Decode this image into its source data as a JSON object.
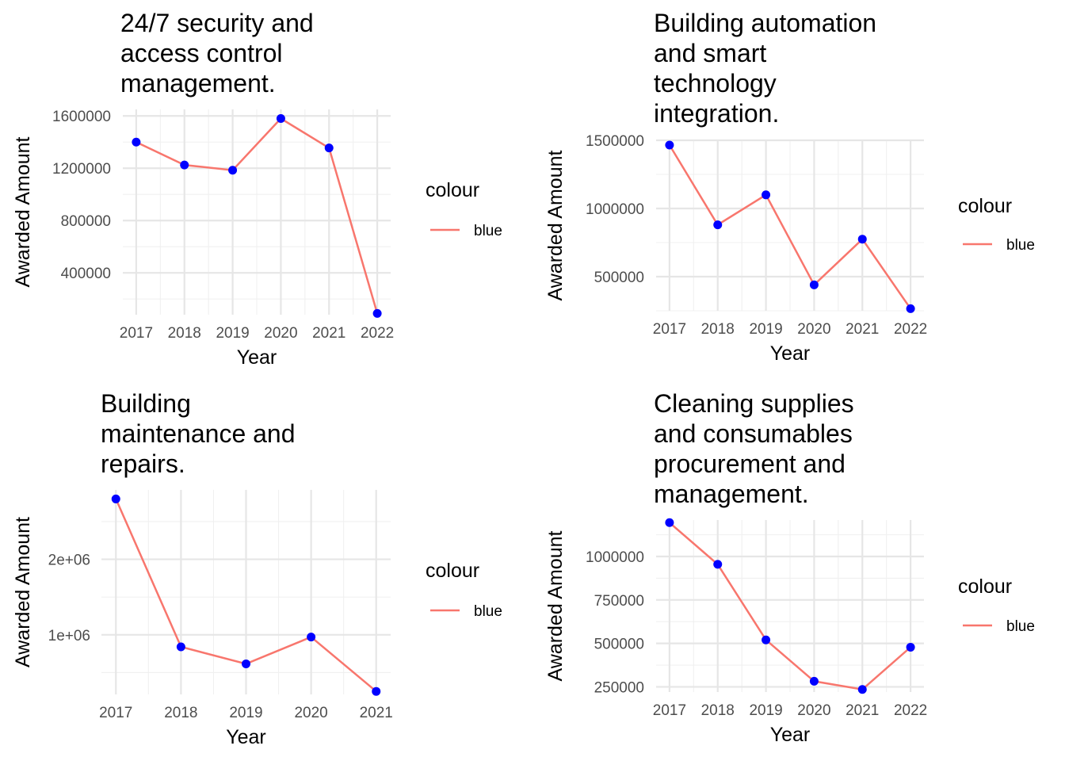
{
  "chart_data": [
    {
      "type": "line",
      "title": "24/7 security and access control management.",
      "title_lines": [
        "24/7 security and",
        "access control",
        "management."
      ],
      "xlabel": "Year",
      "ylabel": "Awarded Amount",
      "x": [
        2017,
        2018,
        2019,
        2020,
        2021,
        2022
      ],
      "x_tick_labels": [
        "2017",
        "2018",
        "2019",
        "2020",
        "2021",
        "2022"
      ],
      "y_ticks": [
        400000,
        800000,
        1200000,
        1600000
      ],
      "y_tick_labels": [
        "400000",
        "800000",
        "1200000",
        "1600000"
      ],
      "ylim": [
        80000,
        1650000
      ],
      "series": [
        {
          "name": "blue",
          "values": [
            1400000,
            1225000,
            1185000,
            1580000,
            1355000,
            90000
          ]
        }
      ],
      "legend": {
        "title": "colour",
        "position": "right",
        "entries": [
          "blue"
        ]
      },
      "grid": true
    },
    {
      "type": "line",
      "title": "Building automation and smart technology integration.",
      "title_lines": [
        "Building automation",
        "and smart",
        "technology",
        "integration."
      ],
      "xlabel": "Year",
      "ylabel": "Awarded Amount",
      "x": [
        2017,
        2018,
        2019,
        2020,
        2021,
        2022
      ],
      "x_tick_labels": [
        "2017",
        "2018",
        "2019",
        "2020",
        "2021",
        "2022"
      ],
      "y_ticks": [
        500000,
        1000000,
        1500000
      ],
      "y_tick_labels": [
        "500000",
        "1000000",
        "1500000"
      ],
      "ylim": [
        250000,
        1500000
      ],
      "series": [
        {
          "name": "blue",
          "values": [
            1465000,
            880000,
            1100000,
            440000,
            775000,
            265000
          ]
        }
      ],
      "legend": {
        "title": "colour",
        "position": "right",
        "entries": [
          "blue"
        ]
      },
      "grid": true
    },
    {
      "type": "line",
      "title": "Building maintenance and repairs.",
      "title_lines": [
        "Building",
        "maintenance and",
        "repairs."
      ],
      "xlabel": "Year",
      "ylabel": "Awarded Amount",
      "x": [
        2017,
        2018,
        2019,
        2020,
        2021
      ],
      "x_tick_labels": [
        "2017",
        "2018",
        "2019",
        "2020",
        "2021"
      ],
      "y_ticks": [
        1000000,
        2000000
      ],
      "y_tick_labels": [
        "1e+06",
        "2e+06"
      ],
      "ylim": [
        210000,
        2920000
      ],
      "series": [
        {
          "name": "blue",
          "values": [
            2800000,
            840000,
            615000,
            970000,
            250000
          ]
        }
      ],
      "legend": {
        "title": "colour",
        "position": "right",
        "entries": [
          "blue"
        ]
      },
      "grid": true
    },
    {
      "type": "line",
      "title": "Cleaning supplies and consumables procurement and management.",
      "title_lines": [
        "Cleaning supplies",
        "and consumables",
        "procurement and",
        "management."
      ],
      "xlabel": "Year",
      "ylabel": "Awarded Amount",
      "x": [
        2017,
        2018,
        2019,
        2020,
        2021,
        2022
      ],
      "x_tick_labels": [
        "2017",
        "2018",
        "2019",
        "2020",
        "2021",
        "2022"
      ],
      "y_ticks": [
        250000,
        500000,
        750000,
        1000000
      ],
      "y_tick_labels": [
        "250000",
        "500000",
        "750000",
        "1000000"
      ],
      "ylim": [
        220000,
        1210000
      ],
      "series": [
        {
          "name": "blue",
          "values": [
            1195000,
            955000,
            520000,
            282000,
            235000,
            478000
          ]
        }
      ],
      "legend": {
        "title": "colour",
        "position": "right",
        "entries": [
          "blue"
        ]
      },
      "grid": true
    }
  ],
  "colors": {
    "line": "#F8766D",
    "point": "#0000FF",
    "grid_major": "#E6E6E6",
    "grid_minor": "#F0F0F0",
    "tick_text": "#4D4D4D"
  }
}
